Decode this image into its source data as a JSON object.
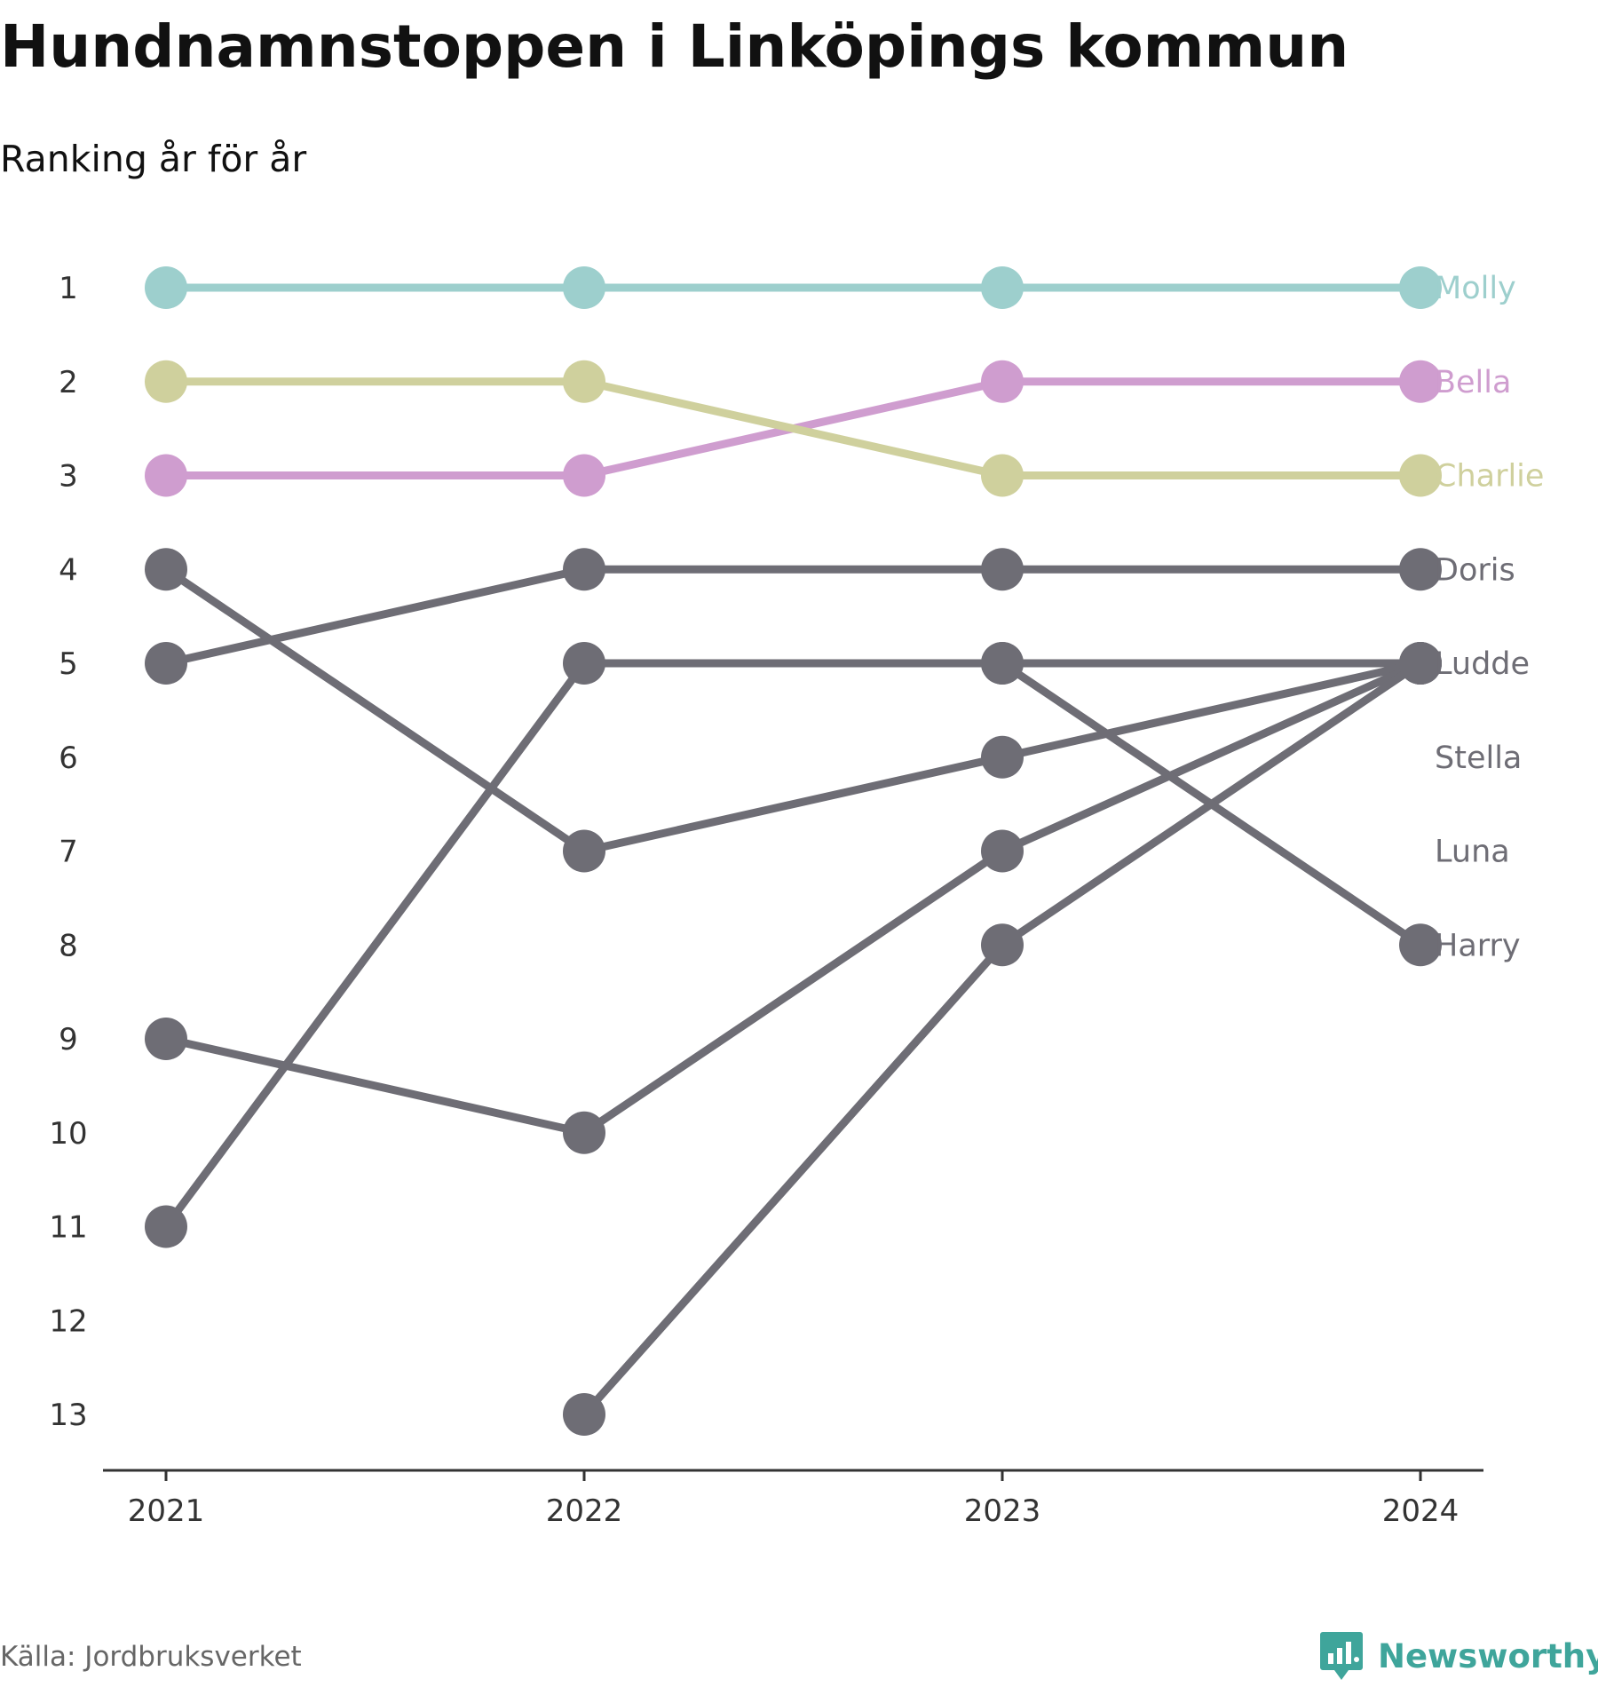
{
  "title": "Hundnamnstoppen i Linköpings kommun",
  "subtitle": "Ranking år för år",
  "source": "Källa: Jordbruksverket",
  "brand": {
    "name": "Newsworthy",
    "icon": "newsworthy-chart-icon",
    "color": "#3fa59b"
  },
  "chart_data": {
    "type": "line",
    "subtype": "bump-chart",
    "title": "Hundnamnstoppen i Linköpings kommun",
    "subtitle": "Ranking år för år",
    "x": [
      "2021",
      "2022",
      "2023",
      "2024"
    ],
    "y_ticks": [
      1,
      2,
      3,
      4,
      5,
      6,
      7,
      8,
      9,
      10,
      11,
      12,
      13
    ],
    "ylim": [
      1,
      13
    ],
    "y_inverted": true,
    "grid": false,
    "series": [
      {
        "name": "Doris",
        "values": [
          5,
          4,
          4,
          4
        ],
        "color": "#6e6d75"
      },
      {
        "name": "Ludde",
        "values": [
          11,
          5,
          5,
          5
        ],
        "color": "#6e6d75"
      },
      {
        "name": "Stella",
        "values": [
          4,
          7,
          6,
          5
        ],
        "color": "#6e6d75"
      },
      {
        "name": "Luna",
        "values": [
          9,
          10,
          7,
          5
        ],
        "color": "#6e6d75"
      },
      {
        "name": "Harry",
        "values": [
          null,
          13,
          8,
          5
        ],
        "color": "#6e6d75"
      },
      {
        "name": "Molly",
        "values": [
          1,
          1,
          1,
          1
        ],
        "color": "#9dcfcd"
      },
      {
        "name": "Bella",
        "values": [
          3,
          3,
          2,
          2
        ],
        "color": "#cf9dcf"
      },
      {
        "name": "Charlie",
        "values": [
          2,
          2,
          3,
          3
        ],
        "color": "#cfd09d"
      }
    ],
    "end_labels": [
      {
        "text": "Molly",
        "rank": 1,
        "color": "#9dcfcd"
      },
      {
        "text": "Bella",
        "rank": 2,
        "color": "#cf9dcf"
      },
      {
        "text": "Charlie",
        "rank": 3,
        "color": "#cfd09d"
      },
      {
        "text": "Doris",
        "rank": 4,
        "color": "#6e6d75"
      },
      {
        "text": "Ludde",
        "rank": 5,
        "color": "#6e6d75"
      },
      {
        "text": "Stella",
        "rank": 6,
        "color": "#6e6d75"
      },
      {
        "text": "Luna",
        "rank": 7,
        "color": "#6e6d75"
      },
      {
        "text": "Harry",
        "rank": 8,
        "color": "#6e6d75"
      }
    ],
    "extra_line": {
      "values": [
        null,
        null,
        5,
        8
      ],
      "color": "#6e6d75"
    }
  }
}
